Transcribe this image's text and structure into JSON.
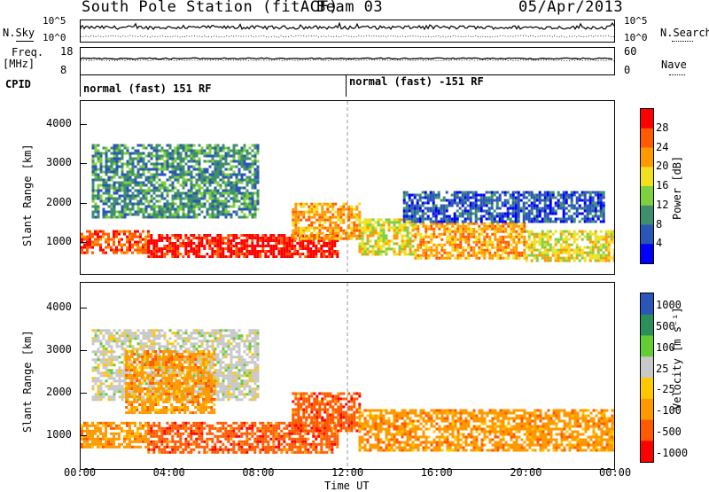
{
  "header": {
    "station": "South Pole Station (fitACF)",
    "beam": "Beam 03",
    "date": "05/Apr/2013"
  },
  "strips": {
    "nsky_label": "N.Sky",
    "nsky_ticks": [
      "10^5",
      "10^0"
    ],
    "nsearch_label": "N.Search",
    "nsearch_ticks": [
      "10^5",
      "10^0"
    ],
    "freq_label": "Freq.",
    "freq_unit": "[MHz]",
    "freq_ticks": [
      "18",
      "8"
    ],
    "nave_label": "Nave",
    "nave_ticks": [
      "60",
      "0"
    ],
    "cpid_label": "CPID",
    "cpid_segments": [
      {
        "label": "normal (fast) 151 RF",
        "start_hour": 0
      },
      {
        "label": "normal (fast) -151 RF",
        "start_hour": 12
      }
    ]
  },
  "colors": {
    "power": [
      "#0000ff",
      "#2a56b8",
      "#3f8f6f",
      "#7fcf3f",
      "#f0e020",
      "#ff9900",
      "#ff5a00",
      "#ff0000"
    ],
    "velocity": [
      "#ff0000",
      "#ff5a00",
      "#ff9900",
      "#ffc800",
      "#c8c8c8",
      "#66cc33",
      "#2a8f5a",
      "#2a56b8"
    ],
    "ground_scatter": "#c8c8c8"
  },
  "chart_data": [
    {
      "type": "heatmap",
      "name_hint": "power",
      "xlabel": "Time UT",
      "ylabel": "Slant Range [km]",
      "xlim": [
        0,
        24
      ],
      "ylim": [
        180,
        4600
      ],
      "x_ticks": [
        "00:00",
        "04:00",
        "08:00",
        "12:00",
        "16:00",
        "20:00",
        "00:00"
      ],
      "y_ticks": [
        1000,
        2000,
        3000,
        4000
      ],
      "colorbar_label": "Power [dB]",
      "colorbar_ticks": [
        "4",
        "8",
        "12",
        "16",
        "20",
        "24",
        "28"
      ],
      "regions": [
        {
          "t0": 0.0,
          "t1": 3.0,
          "r0": 700,
          "r1": 1300,
          "value": 26
        },
        {
          "t0": 3.0,
          "t1": 11.5,
          "r0": 650,
          "r1": 1200,
          "value": 28
        },
        {
          "t0": 9.5,
          "t1": 12.5,
          "r0": 1100,
          "r1": 2000,
          "value": 22
        },
        {
          "t0": 12.5,
          "t1": 15.0,
          "r0": 700,
          "r1": 1600,
          "value": 16
        },
        {
          "t0": 15.0,
          "t1": 20.0,
          "r0": 600,
          "r1": 1500,
          "value": 20
        },
        {
          "t0": 20.0,
          "t1": 24.0,
          "r0": 500,
          "r1": 1300,
          "value": 18
        },
        {
          "t0": 0.5,
          "t1": 8.0,
          "r0": 1600,
          "r1": 3500,
          "value": 10
        },
        {
          "t0": 14.5,
          "t1": 23.5,
          "r0": 1500,
          "r1": 2300,
          "value": 6
        }
      ]
    },
    {
      "type": "heatmap",
      "name_hint": "velocity",
      "xlabel": "Time UT",
      "ylabel": "Slant Range [km]",
      "xlim": [
        0,
        24
      ],
      "ylim": [
        180,
        4600
      ],
      "x_ticks": [
        "00:00",
        "04:00",
        "08:00",
        "12:00",
        "16:00",
        "20:00",
        "00:00"
      ],
      "y_ticks": [
        1000,
        2000,
        3000,
        4000
      ],
      "colorbar_label": "Velocity [m s⁻¹]",
      "colorbar_ticks": [
        "1000",
        "500",
        "100",
        "25",
        "-25",
        "-100",
        "-500",
        "-1000"
      ],
      "regions": [
        {
          "t0": 0.0,
          "t1": 3.0,
          "r0": 700,
          "r1": 1300,
          "value": -200
        },
        {
          "t0": 3.0,
          "t1": 11.5,
          "r0": 550,
          "r1": 1300,
          "value": -300
        },
        {
          "t0": 9.5,
          "t1": 12.5,
          "r0": 1100,
          "r1": 2000,
          "value": -400
        },
        {
          "t0": 12.5,
          "t1": 24.0,
          "r0": 600,
          "r1": 1600,
          "value": -200
        },
        {
          "t0": 0.5,
          "t1": 8.0,
          "r0": 1800,
          "r1": 3500,
          "value": 0
        },
        {
          "t0": 2.0,
          "t1": 6.0,
          "r0": 1500,
          "r1": 3000,
          "value": -150
        }
      ]
    }
  ]
}
